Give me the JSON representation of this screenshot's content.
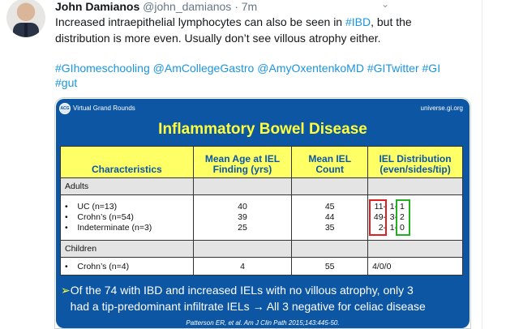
{
  "tweet": {
    "name": "John Damianos",
    "handle": "@john_damianos",
    "time": "· 7m",
    "line1_pre": "Increased intraepithelial lymphocytes can also be seen in ",
    "line1_tag": "#IBD",
    "line1_post": ", but the",
    "line2": "distribution is more even. Usually don’t see villous atrophy either.",
    "tags": [
      "#GIhomeschooling",
      "@AmCollegeGastro",
      "@AmyOxentenkoMD",
      "#GITwitter",
      "#GI",
      "#gut"
    ]
  },
  "icons": {
    "menu": "chevron-down-icon",
    "avatar": "avatar"
  },
  "slide": {
    "logo": "ACG",
    "header_left": "Virtual Grand Rounds",
    "header_right": "universe.gi.org",
    "title": "Inflammatory Bowel Disease",
    "columns": [
      "Characteristics",
      "Mean Age at IEL Finding (yrs)",
      "Mean IEL Count",
      "IEL Distribution (even/sides/tip)"
    ],
    "adults_label": "Adults",
    "children_label": "Children",
    "adults": [
      {
        "name": "UC (n=13)",
        "age": "40",
        "count": "45",
        "even": "11-",
        "sides": "1-",
        "tip": "1"
      },
      {
        "name": "Crohn’s (n=54)",
        "age": "39",
        "count": "44",
        "even": "49-",
        "sides": "3-",
        "tip": "2"
      },
      {
        "name": "Indeterminate (n=3)",
        "age": "25",
        "count": "35",
        "even": "2-",
        "sides": "1-",
        "tip": "0"
      }
    ],
    "children": [
      {
        "name": "Crohn’s (n=4)",
        "age": "4",
        "count": "55",
        "dist": "4/0/0"
      }
    ],
    "bullet_line1": "Of the 74 with IBD and increased IELs with no villous atrophy, only 3",
    "bullet_line2": "had a tip-predominant infiltrate IELs → All 3 negative for celiac disease",
    "citation": "Patterson ER, et al. Am J Clin Path 2015;143:445-50.",
    "colors": {
      "slide_bg": "#0c56a4",
      "title": "#ffff3a",
      "header_bg": "#ffff66",
      "red_box": "#e02020",
      "green_box": "#22b022"
    }
  }
}
